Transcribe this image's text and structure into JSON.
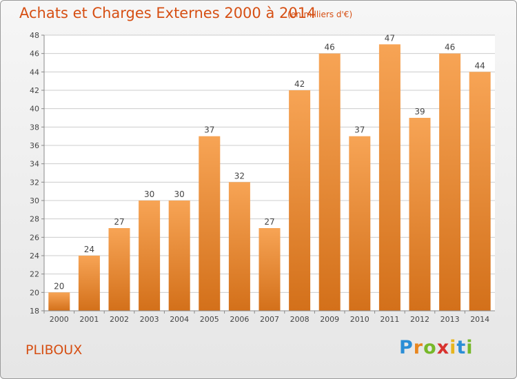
{
  "chart_data": {
    "type": "bar",
    "title": "Achats et Charges Externes 2000 à 2014",
    "subtitle": "(en milliers d'€)",
    "xlabel": "",
    "ylabel": "",
    "categories": [
      "2000",
      "2001",
      "2002",
      "2003",
      "2004",
      "2005",
      "2006",
      "2007",
      "2008",
      "2009",
      "2010",
      "2011",
      "2012",
      "2013",
      "2014"
    ],
    "values": [
      20,
      24,
      27,
      30,
      30,
      37,
      32,
      27,
      42,
      46,
      37,
      47,
      39,
      46,
      44
    ],
    "ylim": [
      18,
      48
    ],
    "yticks": [
      18,
      20,
      22,
      24,
      26,
      28,
      30,
      32,
      34,
      36,
      38,
      40,
      42,
      44,
      46,
      48
    ],
    "grid": true,
    "legend": "none",
    "bar_color_top": "#f7a455",
    "bar_color_bottom": "#d3701a"
  },
  "location": {
    "name": "PLIBOUX"
  },
  "brand": {
    "letters": [
      "P",
      "r",
      "o",
      "x",
      "i",
      "t",
      "i"
    ],
    "colors": [
      "#2b8ed6",
      "#e8861f",
      "#77b82a",
      "#d8322e",
      "#e6b51e",
      "#2b8ed6",
      "#77b82a"
    ]
  },
  "colors": {
    "text_accent": "#d64f13",
    "grid": "#cccccc"
  }
}
